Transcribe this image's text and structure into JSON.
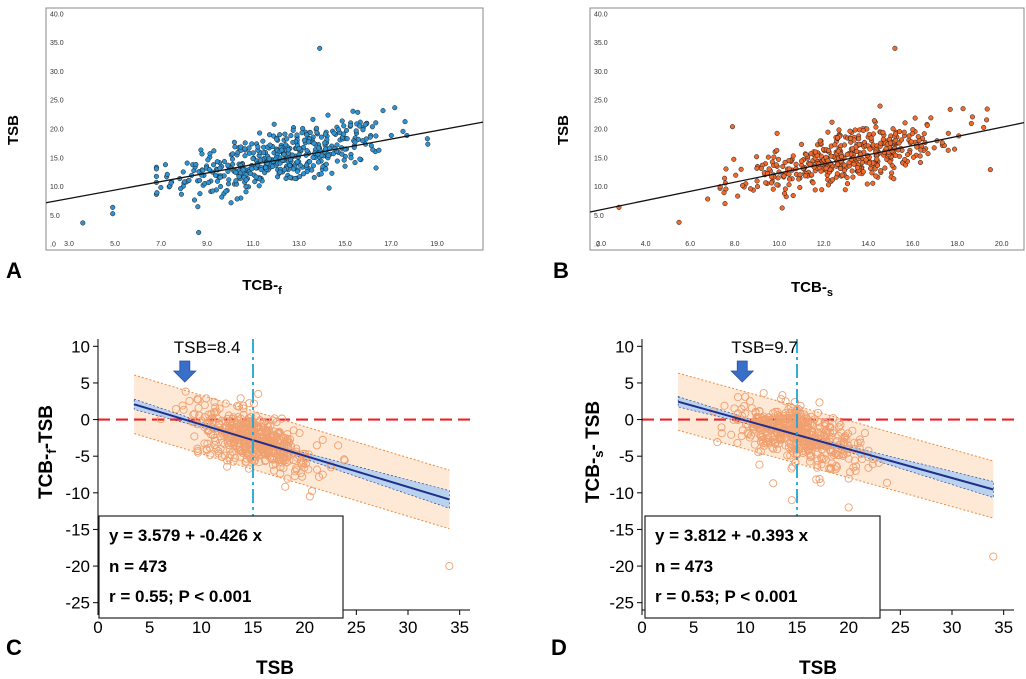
{
  "colors": {
    "blue_point": "#2f93d3",
    "orange_point": "#f06a2e",
    "open_circle": "#f0a070",
    "band_outer": "#fde9d6",
    "band_outer_edge": "#f08a3c",
    "band_inner": "#b9d2ee",
    "reg_line": "#1f2f8a",
    "zero_line": "#e8262a",
    "vline": "#1ca6d8",
    "arrow": "#3a6fc9"
  },
  "chart_data": [
    {
      "panel": "A",
      "type": "scatter",
      "ylabel": "TSB",
      "xlabel_main": "TCB-",
      "xlabel_sub": "f",
      "xlim": [
        2.0,
        21.0
      ],
      "ylim": [
        -1.0,
        41.0
      ],
      "xticks": [
        3.0,
        5.0,
        7.0,
        9.0,
        11.0,
        13.0,
        15.0,
        17.0,
        19.0
      ],
      "xtick_labels": [
        "3.0",
        "5.0",
        "7.0",
        "9.0",
        "11.0",
        "13.0",
        "15.0",
        "17.0",
        "19.0"
      ],
      "yticks": [
        0,
        5,
        10,
        15,
        20,
        25,
        30,
        35,
        40
      ],
      "ytick_labels": [
        ".0",
        "5.0",
        "10.0",
        "15.0",
        "20.0",
        "25.0",
        "30.0",
        "35.0",
        "40.0"
      ],
      "fit_line": {
        "x": [
          2.0,
          21.0
        ],
        "y": [
          7.2,
          21.2
        ]
      },
      "n_points": 473,
      "point_cloud": {
        "x_mean": 12.2,
        "x_sd": 2.3,
        "x_min": 6.8,
        "x_max": 18.6,
        "intercept": 5.2,
        "slope": 0.8,
        "resid_sd": 2.4
      },
      "outliers": [
        {
          "x": 13.9,
          "y": 34.0
        },
        {
          "x": 3.6,
          "y": 3.7
        },
        {
          "x": 4.9,
          "y": 5.3
        },
        {
          "x": 4.9,
          "y": 6.4
        }
      ]
    },
    {
      "panel": "B",
      "type": "scatter",
      "ylabel": "TSB",
      "xlabel_main": "TCB-",
      "xlabel_sub": "s",
      "xlim": [
        1.5,
        21.0
      ],
      "ylim": [
        -1.0,
        41.0
      ],
      "xticks": [
        2.0,
        4.0,
        6.0,
        8.0,
        10.0,
        12.0,
        14.0,
        16.0,
        18.0,
        20.0
      ],
      "xtick_labels": [
        "2.0",
        "4.0",
        "6.0",
        "8.0",
        "10.0",
        "12.0",
        "14.0",
        "16.0",
        "18.0",
        "20.0"
      ],
      "yticks": [
        0,
        5,
        10,
        15,
        20,
        25,
        30,
        35,
        40
      ],
      "ytick_labels": [
        ".0",
        "5.0",
        "10.0",
        "15.0",
        "20.0",
        "25.0",
        "30.0",
        "35.0",
        "40.0"
      ],
      "fit_line": {
        "x": [
          1.5,
          21.0
        ],
        "y": [
          5.6,
          21.1
        ]
      },
      "n_points": 473,
      "point_cloud": {
        "x_mean": 13.0,
        "x_sd": 2.4,
        "x_min": 6.0,
        "x_max": 20.0,
        "intercept": 4.3,
        "slope": 0.82,
        "resid_sd": 2.2
      },
      "outliers": [
        {
          "x": 15.2,
          "y": 34.0
        },
        {
          "x": 2.8,
          "y": 6.4
        },
        {
          "x": 5.5,
          "y": 3.8
        },
        {
          "x": 7.9,
          "y": 20.4
        }
      ]
    },
    {
      "panel": "C",
      "type": "scatter",
      "ylabel_main": "TCB-",
      "ylabel_sub": "f",
      "ylabel_tail": "-TSB",
      "xlabel": "TSB",
      "xlim": [
        0,
        36
      ],
      "ylim": [
        -26,
        11
      ],
      "xticks": [
        0,
        5,
        10,
        15,
        20,
        25,
        30,
        35
      ],
      "yticks": [
        10,
        5,
        0,
        -5,
        -10,
        -15,
        -20,
        -25
      ],
      "intercept": 3.579,
      "slope": -0.426,
      "fit_x_range": [
        3.5,
        34
      ],
      "loa_halfwidth": 4.0,
      "ci_halfwidth": [
        0.7,
        0.15,
        1.2
      ],
      "vline_x": 15,
      "zero_line_y": 0,
      "annotation": "TSB=8.4",
      "arrow_x": 8.4,
      "stats": {
        "equation": "y = 3.579 + -0.426 x",
        "n": "n = 473",
        "r": "r = 0.55; P < 0.001"
      },
      "point_cloud": {
        "x_mean": 15.0,
        "x_sd": 3.0,
        "x_min": 4.0,
        "x_max": 24.0,
        "resid_sd": 1.9
      },
      "outliers": [
        {
          "x": 34.0,
          "y": -20.0
        },
        {
          "x": 20.5,
          "y": -10.5
        },
        {
          "x": 15.5,
          "y": 3.5
        }
      ]
    },
    {
      "panel": "D",
      "type": "scatter",
      "ylabel_main": "TCB-",
      "ylabel_sub": "s",
      "ylabel_tail": "- TSB",
      "xlabel": "TSB",
      "xlim": [
        0,
        36
      ],
      "ylim": [
        -26,
        11
      ],
      "xticks": [
        0,
        5,
        10,
        15,
        20,
        25,
        30,
        35
      ],
      "yticks": [
        10,
        5,
        0,
        -5,
        -10,
        -15,
        -20,
        -25
      ],
      "intercept": 3.812,
      "slope": -0.393,
      "fit_x_range": [
        3.5,
        34
      ],
      "loa_halfwidth": 3.9,
      "ci_halfwidth": [
        0.7,
        0.15,
        1.1
      ],
      "vline_x": 15,
      "zero_line_y": 0,
      "annotation": "TSB=9.7",
      "arrow_x": 9.7,
      "stats": {
        "equation": "y = 3.812 + -0.393 x",
        "n": "n = 473",
        "r": "r = 0.53; P < 0.001"
      },
      "point_cloud": {
        "x_mean": 15.0,
        "x_sd": 3.0,
        "x_min": 4.0,
        "x_max": 24.0,
        "resid_sd": 1.8
      },
      "outliers": [
        {
          "x": 34.0,
          "y": -18.7
        },
        {
          "x": 20.0,
          "y": -12.0
        },
        {
          "x": 14.5,
          "y": -11.0
        }
      ]
    }
  ]
}
